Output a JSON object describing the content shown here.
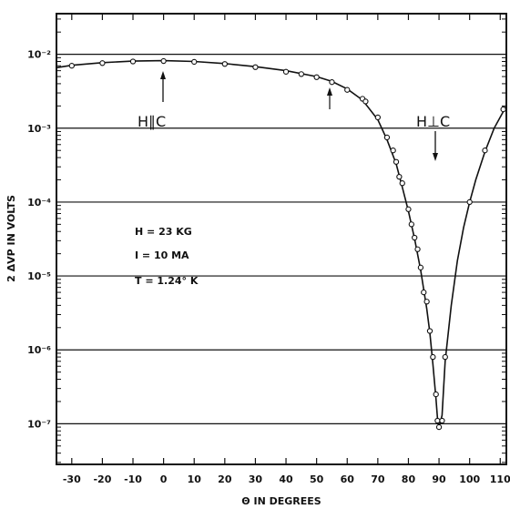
{
  "chart_data": {
    "type": "scatter",
    "xlabel": "Θ IN DEGREES",
    "ylabel": "2 ΔVP IN VOLTS",
    "xlim": [
      -35,
      112
    ],
    "ylim_log10": [
      -7.55,
      -1.45
    ],
    "y_scale": "log",
    "x_ticks": [
      -30,
      -20,
      -10,
      0,
      10,
      20,
      30,
      40,
      50,
      60,
      70,
      80,
      90,
      100,
      110
    ],
    "x_tick_labels": [
      "-30",
      "-20",
      "-10",
      "0",
      "10",
      "20",
      "30",
      "40",
      "50",
      "60",
      "70",
      "80",
      "90",
      "100",
      "110"
    ],
    "y_ticks": [
      0.01,
      0.001,
      0.0001,
      1e-05,
      1e-06,
      1e-07
    ],
    "y_tick_labels": [
      "10⁻²",
      "10⁻³",
      "10⁻⁴",
      "10⁻⁵",
      "10⁻⁶",
      "10⁻⁷"
    ],
    "grid": "horizontal at decades",
    "series": [
      {
        "points": [
          [
            -30,
            0.007
          ],
          [
            -20,
            0.0076
          ],
          [
            -10,
            0.008
          ],
          [
            0,
            0.0081
          ],
          [
            10,
            0.0079
          ],
          [
            20,
            0.0074
          ],
          [
            30,
            0.0067
          ],
          [
            40,
            0.0058
          ],
          [
            45,
            0.0054
          ],
          [
            50,
            0.0049
          ],
          [
            55,
            0.0042
          ],
          [
            60,
            0.0033
          ],
          [
            65,
            0.0025
          ],
          [
            66,
            0.0023
          ],
          [
            70,
            0.0014
          ],
          [
            73,
            0.00075
          ],
          [
            75,
            0.0005
          ],
          [
            76,
            0.00035
          ],
          [
            77,
            0.00022
          ],
          [
            78,
            0.00018
          ],
          [
            80,
            8e-05
          ],
          [
            81,
            5e-05
          ],
          [
            82,
            3.3e-05
          ],
          [
            83,
            2.3e-05
          ],
          [
            84,
            1.3e-05
          ],
          [
            85,
            6e-06
          ],
          [
            86,
            4.5e-06
          ],
          [
            87,
            1.8e-06
          ],
          [
            88,
            8e-07
          ],
          [
            89,
            2.5e-07
          ],
          [
            89.5,
            1.1e-07
          ],
          [
            90,
            9e-08
          ],
          [
            91,
            1.1e-07
          ],
          [
            92,
            8e-07
          ],
          [
            100,
            0.0001
          ],
          [
            105,
            0.0005
          ],
          [
            111,
            0.0018
          ]
        ],
        "curve": [
          [
            -35,
            0.0066
          ],
          [
            -30,
            0.0071
          ],
          [
            -20,
            0.0077
          ],
          [
            -10,
            0.0081
          ],
          [
            0,
            0.0082
          ],
          [
            10,
            0.008
          ],
          [
            20,
            0.0075
          ],
          [
            30,
            0.0068
          ],
          [
            40,
            0.006
          ],
          [
            50,
            0.005
          ],
          [
            55,
            0.0043
          ],
          [
            60,
            0.0034
          ],
          [
            65,
            0.0024
          ],
          [
            70,
            0.0013
          ],
          [
            73,
            0.0007
          ],
          [
            76,
            0.00033
          ],
          [
            78,
            0.00016
          ],
          [
            80,
            7.5e-05
          ],
          [
            82,
            3.2e-05
          ],
          [
            84,
            1.2e-05
          ],
          [
            86,
            3.6e-06
          ],
          [
            87,
            1.7e-06
          ],
          [
            88,
            6.5e-07
          ],
          [
            89,
            2.2e-07
          ],
          [
            89.6,
            1.05e-07
          ],
          [
            90,
            9e-08
          ],
          [
            91,
            1.3e-07
          ],
          [
            92,
            7e-07
          ],
          [
            94,
            4e-06
          ],
          [
            96,
            1.6e-05
          ],
          [
            98,
            4.5e-05
          ],
          [
            100,
            0.0001
          ],
          [
            102,
            0.0002
          ],
          [
            105,
            0.00048
          ],
          [
            108,
            0.001
          ],
          [
            112,
            0.002
          ]
        ]
      }
    ],
    "annotations": {
      "h_parallel_c": "H∥C",
      "h_perp_c": "H⊥C",
      "field": "H = 23 KG",
      "current": "I = 10 MA",
      "temperature": "T = 1.24° K"
    }
  }
}
